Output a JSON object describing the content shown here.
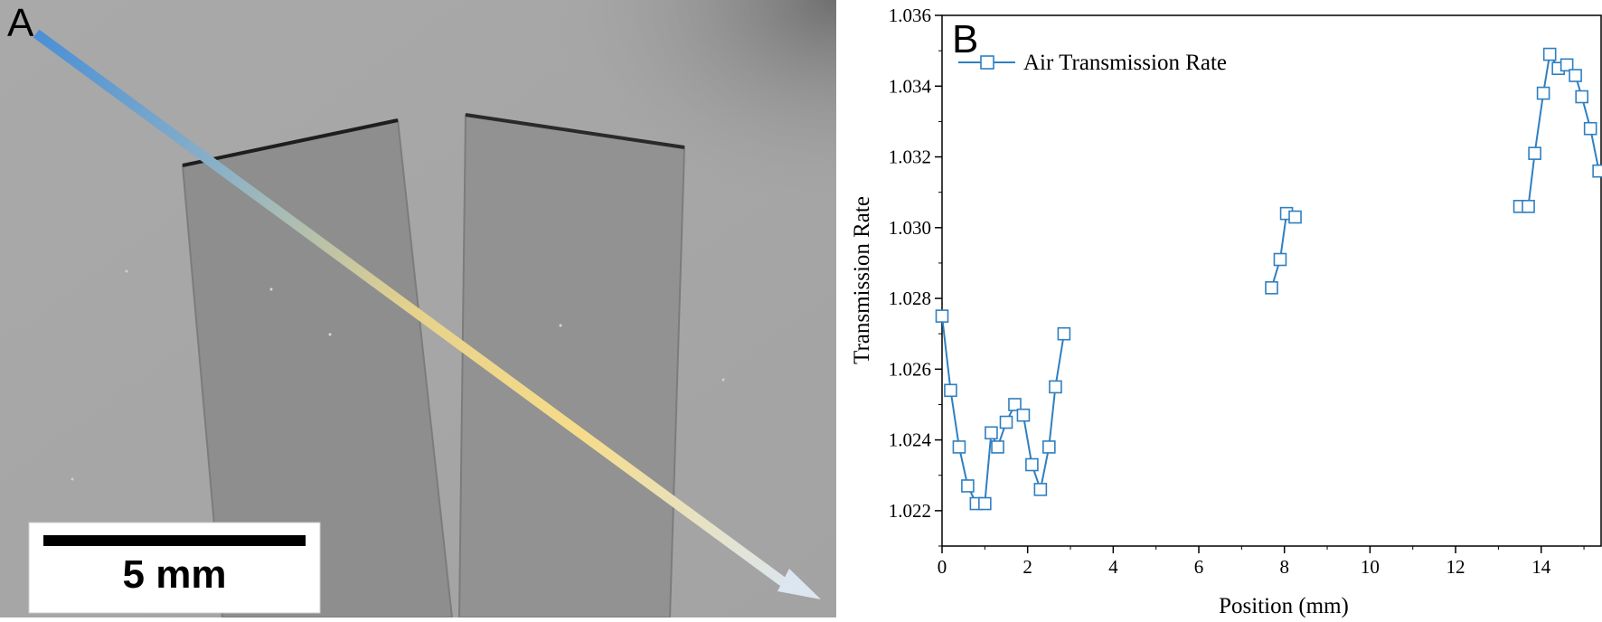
{
  "panel_a": {
    "label": "A",
    "scale_bar_label": "5 mm"
  },
  "panel_b": {
    "label": "B"
  },
  "chart_data": {
    "type": "line",
    "title": "",
    "xlabel": "Position (mm)",
    "ylabel": "Transmission Rate",
    "xlim": [
      0,
      15.4
    ],
    "ylim": [
      1.021,
      1.036
    ],
    "xticks": [
      "0",
      "2",
      "4",
      "6",
      "8",
      "10",
      "12",
      "14"
    ],
    "yticks": [
      "1.022",
      "1.024",
      "1.026",
      "1.028",
      "1.030",
      "1.032",
      "1.034",
      "1.036"
    ],
    "grid": false,
    "legend_position": "top-left",
    "series": [
      {
        "name": "Air Transmission Rate",
        "color": "#2f7fc1",
        "marker": "square",
        "segments": [
          [
            [
              0.0,
              1.0275
            ],
            [
              0.2,
              1.0254
            ],
            [
              0.4,
              1.0238
            ],
            [
              0.6,
              1.0227
            ],
            [
              0.8,
              1.0222
            ],
            [
              1.0,
              1.0222
            ],
            [
              1.15,
              1.0242
            ],
            [
              1.3,
              1.0238
            ],
            [
              1.5,
              1.0245
            ],
            [
              1.7,
              1.025
            ],
            [
              1.9,
              1.0247
            ],
            [
              2.1,
              1.0233
            ],
            [
              2.3,
              1.0226
            ],
            [
              2.5,
              1.0238
            ],
            [
              2.65,
              1.0255
            ],
            [
              2.85,
              1.027
            ]
          ],
          [
            [
              7.7,
              1.0283
            ],
            [
              7.9,
              1.0291
            ],
            [
              8.05,
              1.0304
            ],
            [
              8.25,
              1.0303
            ]
          ],
          [
            [
              13.5,
              1.0306
            ],
            [
              13.7,
              1.0306
            ],
            [
              13.85,
              1.0321
            ],
            [
              14.05,
              1.0338
            ],
            [
              14.2,
              1.0349
            ],
            [
              14.4,
              1.0345
            ],
            [
              14.6,
              1.0346
            ],
            [
              14.8,
              1.0343
            ],
            [
              14.95,
              1.0337
            ],
            [
              15.15,
              1.0328
            ],
            [
              15.35,
              1.0316
            ]
          ]
        ]
      }
    ]
  }
}
